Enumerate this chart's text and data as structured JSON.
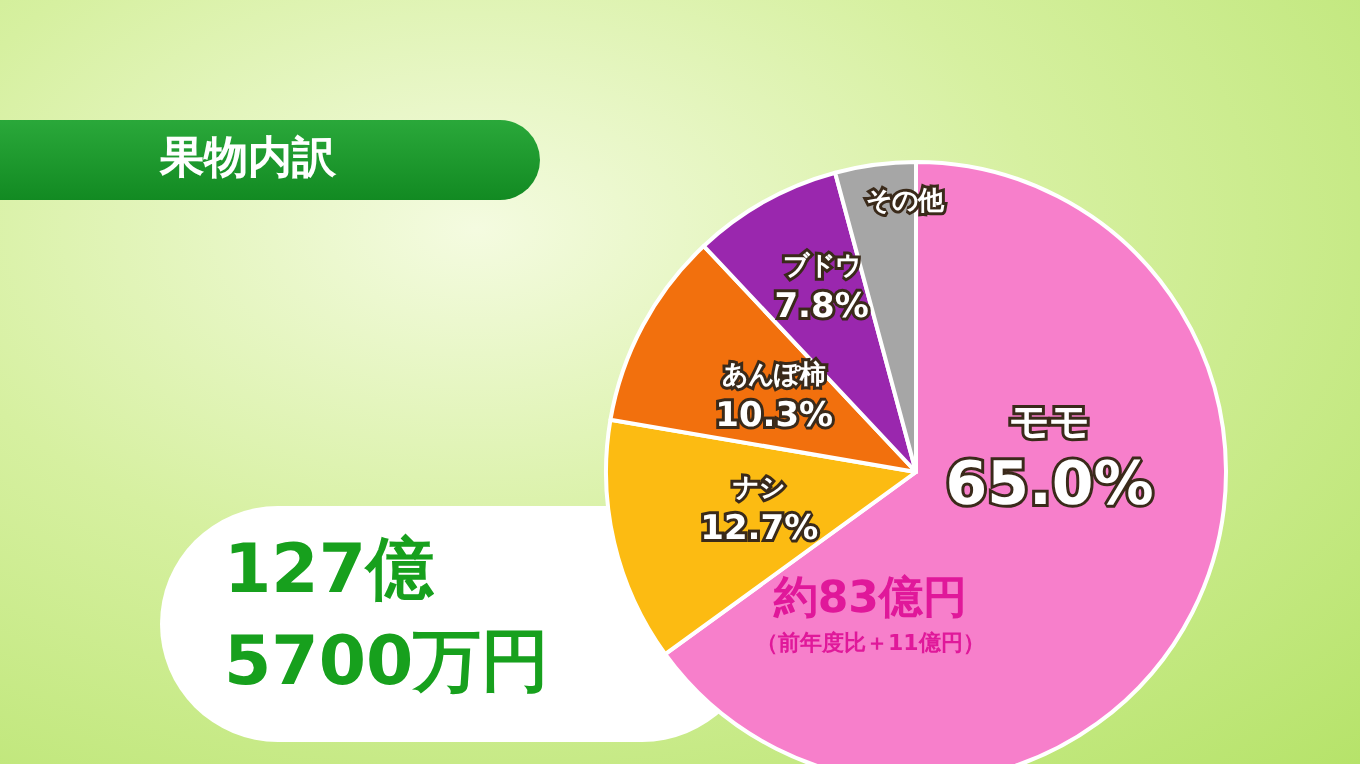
{
  "chart_data": {
    "type": "pie",
    "title": "果物内訳",
    "categories": [
      "モモ",
      "ナシ",
      "あんぽ柿",
      "ブドウ",
      "その他"
    ],
    "values": [
      65.0,
      12.7,
      10.3,
      7.8,
      4.2
    ],
    "colors": [
      "#f77fcb",
      "#fcbb12",
      "#f2700d",
      "#9a27ae",
      "#a6a6a6"
    ],
    "value_labels": [
      "65.0%",
      "12.7%",
      "10.3%",
      "7.8%",
      null
    ],
    "annotations": [
      "127億 5700万円",
      "約83億円",
      "（前年度比＋11億円）"
    ]
  }
}
